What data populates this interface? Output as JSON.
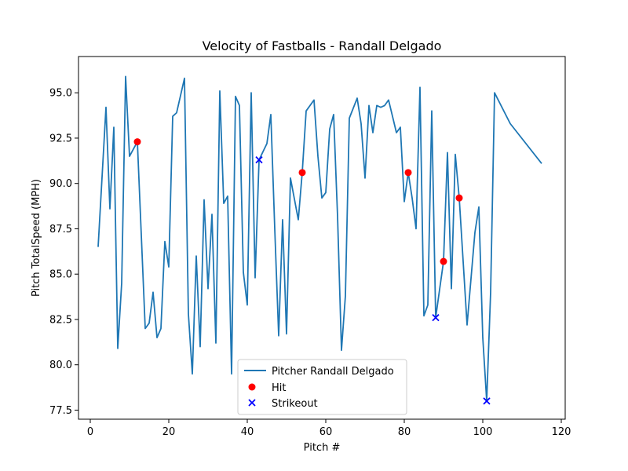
{
  "chart_data": {
    "type": "line",
    "title": "Velocity of Fastballs - Randall Delgado",
    "xlabel": "Pitch #",
    "ylabel": "Pitch TotalSpeed (MPH)",
    "xlim": [
      -3,
      121
    ],
    "ylim": [
      77,
      97
    ],
    "xticks": [
      0,
      20,
      40,
      60,
      80,
      100,
      120
    ],
    "yticks": [
      77.5,
      80.0,
      82.5,
      85.0,
      87.5,
      90.0,
      92.5,
      95.0
    ],
    "ytick_labels": [
      "77.5",
      "80.0",
      "82.5",
      "85.0",
      "87.5",
      "90.0",
      "92.5",
      "95.0"
    ],
    "grid": false,
    "legend_position": "lower-center",
    "series": [
      {
        "name": "Pitcher Randall Delgado",
        "kind": "line",
        "color": "#1f77b4",
        "points": [
          [
            2,
            86.5
          ],
          [
            4,
            94.2
          ],
          [
            5,
            88.6
          ],
          [
            6,
            93.1
          ],
          [
            7,
            80.9
          ],
          [
            8,
            84.5
          ],
          [
            9,
            95.9
          ],
          [
            10,
            91.5
          ],
          [
            12,
            92.3
          ],
          [
            14,
            82.0
          ],
          [
            15,
            82.3
          ],
          [
            16,
            84.0
          ],
          [
            17,
            81.5
          ],
          [
            18,
            82.0
          ],
          [
            19,
            86.8
          ],
          [
            20,
            85.4
          ],
          [
            21,
            93.7
          ],
          [
            22,
            93.9
          ],
          [
            24,
            95.8
          ],
          [
            25,
            82.8
          ],
          [
            26,
            79.5
          ],
          [
            27,
            86.0
          ],
          [
            28,
            81.0
          ],
          [
            29,
            89.1
          ],
          [
            30,
            84.2
          ],
          [
            31,
            88.3
          ],
          [
            32,
            81.2
          ],
          [
            33,
            95.1
          ],
          [
            34,
            88.9
          ],
          [
            35,
            89.3
          ],
          [
            36,
            79.5
          ],
          [
            37,
            94.8
          ],
          [
            38,
            94.3
          ],
          [
            39,
            85.1
          ],
          [
            40,
            83.3
          ],
          [
            41,
            95.0
          ],
          [
            42,
            84.8
          ],
          [
            43,
            91.3
          ],
          [
            45,
            92.2
          ],
          [
            46,
            93.8
          ],
          [
            47,
            87.5
          ],
          [
            48,
            81.6
          ],
          [
            49,
            88.0
          ],
          [
            50,
            81.7
          ],
          [
            51,
            90.3
          ],
          [
            53,
            88.0
          ],
          [
            54,
            90.6
          ],
          [
            55,
            94.0
          ],
          [
            57,
            94.6
          ],
          [
            58,
            91.5
          ],
          [
            59,
            89.2
          ],
          [
            60,
            89.5
          ],
          [
            61,
            93.0
          ],
          [
            62,
            93.8
          ],
          [
            63,
            88.2
          ],
          [
            64,
            80.8
          ],
          [
            65,
            83.8
          ],
          [
            66,
            93.6
          ],
          [
            68,
            94.7
          ],
          [
            69,
            93.3
          ],
          [
            70,
            90.3
          ],
          [
            71,
            94.3
          ],
          [
            72,
            92.8
          ],
          [
            73,
            94.3
          ],
          [
            74,
            94.2
          ],
          [
            75,
            94.3
          ],
          [
            76,
            94.6
          ],
          [
            78,
            92.8
          ],
          [
            79,
            93.1
          ],
          [
            80,
            89.0
          ],
          [
            81,
            90.6
          ],
          [
            82,
            89.2
          ],
          [
            83,
            87.5
          ],
          [
            84,
            95.3
          ],
          [
            85,
            82.7
          ],
          [
            86,
            83.3
          ],
          [
            87,
            94.0
          ],
          [
            88,
            82.6
          ],
          [
            90,
            85.7
          ],
          [
            91,
            91.7
          ],
          [
            92,
            84.2
          ],
          [
            93,
            91.6
          ],
          [
            94,
            89.2
          ],
          [
            96,
            82.2
          ],
          [
            98,
            87.3
          ],
          [
            99,
            88.7
          ],
          [
            100,
            81.5
          ],
          [
            101,
            78.0
          ],
          [
            102,
            84.0
          ],
          [
            103,
            95.0
          ],
          [
            107,
            93.3
          ],
          [
            115,
            91.1
          ]
        ]
      },
      {
        "name": "Hit",
        "kind": "scatter",
        "marker": "circle",
        "color": "#ff0000",
        "points": [
          [
            12,
            92.3
          ],
          [
            54,
            90.6
          ],
          [
            81,
            90.6
          ],
          [
            90,
            85.7
          ],
          [
            94,
            89.2
          ]
        ]
      },
      {
        "name": "Strikeout",
        "kind": "scatter",
        "marker": "x",
        "color": "#0000ff",
        "points": [
          [
            43,
            91.3
          ],
          [
            88,
            82.6
          ],
          [
            101,
            78.0
          ]
        ]
      }
    ]
  }
}
